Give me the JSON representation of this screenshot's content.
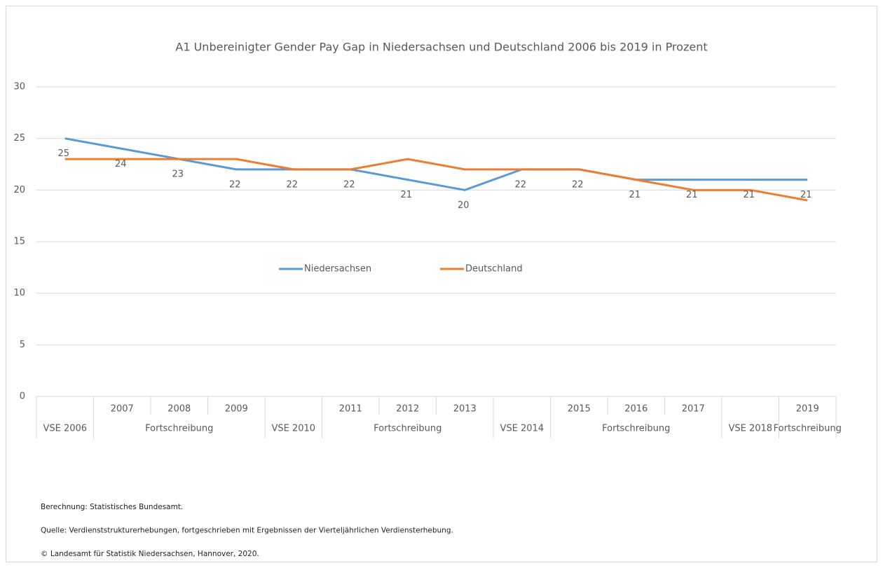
{
  "chart_data": {
    "type": "line",
    "title": "A1 Unbereinigter Gender Pay Gap in Niedersachsen und Deutschland 2006 bis 2019 in Prozent",
    "categories": [
      null,
      "2007",
      "2008",
      "2009",
      null,
      "2011",
      "2012",
      "2013",
      null,
      "2015",
      "2016",
      "2017",
      null,
      "2019"
    ],
    "category_groups": [
      {
        "label": "VSE 2006",
        "size": 1
      },
      {
        "label": "Fortschreibung",
        "size": 3
      },
      {
        "label": "VSE 2010",
        "size": 1
      },
      {
        "label": "Fortschreibung",
        "size": 3
      },
      {
        "label": "VSE 2014",
        "size": 1
      },
      {
        "label": "Fortschreibung",
        "size": 3
      },
      {
        "label": "VSE 2018",
        "size": 1
      },
      {
        "label": "Fortschreibung",
        "size": 1
      }
    ],
    "series": [
      {
        "name": "Niedersachsen",
        "color": "#5b9bd5",
        "show_labels": true,
        "values": [
          25,
          24,
          23,
          22,
          22,
          22,
          21,
          20,
          22,
          22,
          21,
          21,
          21,
          21
        ]
      },
      {
        "name": "Deutschland",
        "color": "#ed7d31",
        "show_labels": false,
        "values": [
          23,
          23,
          23,
          23,
          22,
          22,
          23,
          22,
          22,
          22,
          21,
          20,
          20,
          19
        ]
      }
    ],
    "ylim": [
      0,
      30
    ],
    "yticks": [
      0,
      5,
      10,
      15,
      20,
      25,
      30
    ],
    "grid": true,
    "legend": "center",
    "notes": [
      "Berechnung: Statistisches Bundesamt.",
      "Quelle: Verdienststrukturerhebungen, fortgeschrieben mit Ergebnissen der Vierteljährlichen Verdiensterhebung.",
      "© Landesamt für Statistik Niedersachsen, Hannover, 2020."
    ]
  }
}
